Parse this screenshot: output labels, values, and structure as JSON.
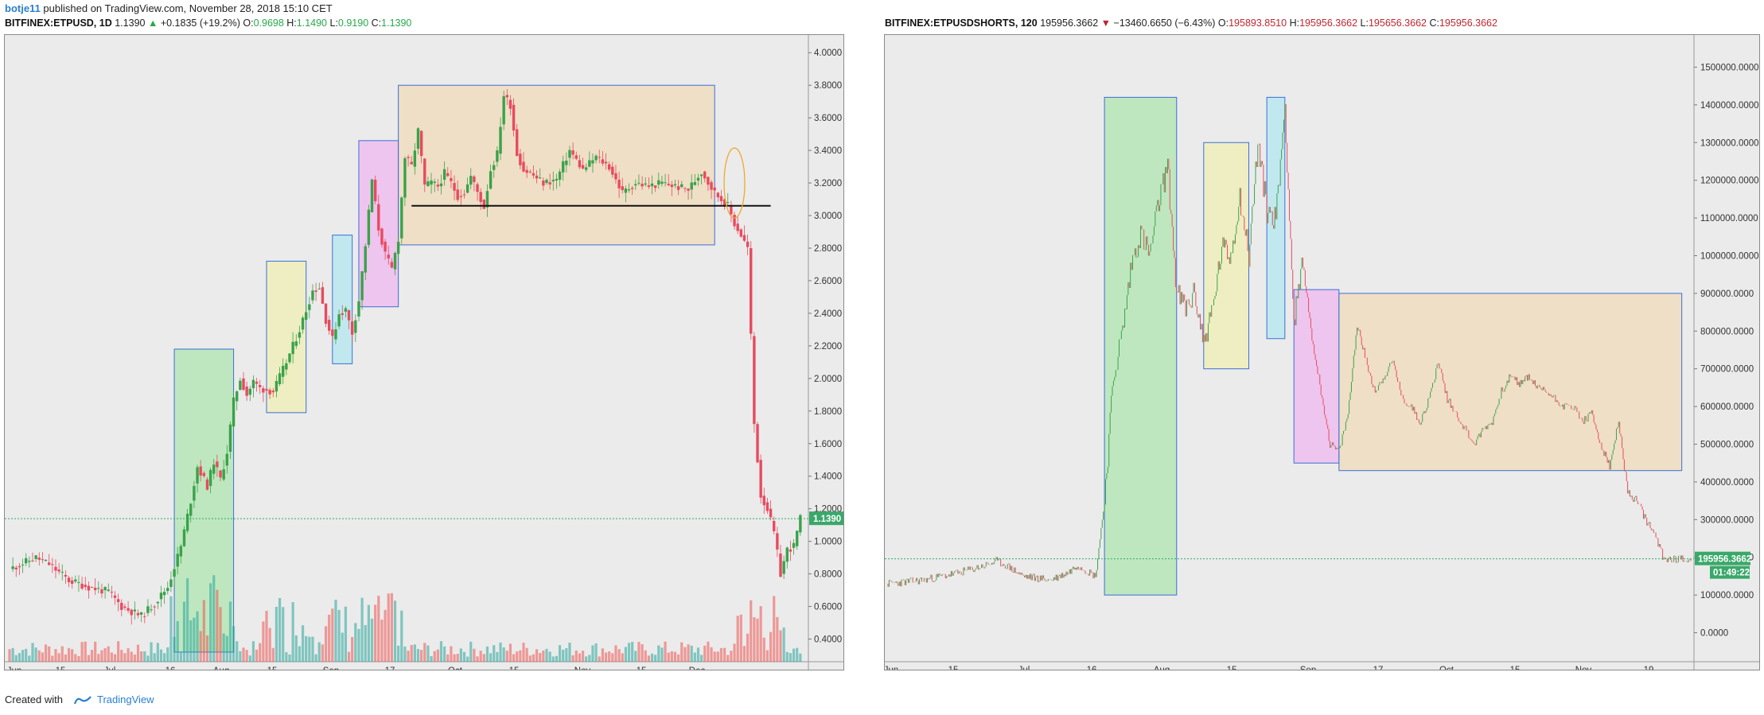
{
  "header": {
    "author": "botje11",
    "published": "published on TradingView.com, November 28, 2018 15:10 CET"
  },
  "left": {
    "symbol": "BITFINEX:ETPUSD, 1D",
    "last": "1.1390",
    "change": "+0.1835 (+19.2%)",
    "o": "0.9698",
    "h": "1.1490",
    "l": "0.9190",
    "c": "1.1390",
    "price_tag": "1.1390"
  },
  "right": {
    "symbol": "BITFINEX:ETPUSDSHORTS, 120",
    "last": "195956.3662",
    "change": "−13460.6650 (−6.43%)",
    "o": "195893.8510",
    "h": "195956.3662",
    "l": "195656.3662",
    "c": "195956.3662",
    "price_tag": "195956.3662",
    "countdown": "01:49:22"
  },
  "footer": {
    "created": "Created with",
    "brand": "TradingView"
  },
  "colors": {
    "up": "#26a69a",
    "down": "#ef5350",
    "candle_up": "#3aa24a",
    "candle_down": "#e84a5f",
    "green_box": "#9be39b",
    "yellow_box": "#f1f0a0",
    "cyan_box": "#9fe6f0",
    "pink_box": "#f0a6f0",
    "orange_box": "#f3d6a8",
    "box_border": "#3b6fd6",
    "last_line": "#2fa86a",
    "tag": "#3aa86a"
  },
  "chart_data": [
    {
      "type": "candlestick",
      "title": "BITFINEX:ETPUSD, 1D",
      "y_ticks": [
        "4.0000",
        "3.8000",
        "3.6000",
        "3.4000",
        "3.2000",
        "3.0000",
        "2.8000",
        "2.6000",
        "2.4000",
        "2.2000",
        "2.0000",
        "1.8000",
        "1.6000",
        "1.4000",
        "1.2000",
        "1.0000",
        "0.8000",
        "0.6000",
        "0.4000"
      ],
      "ylim": [
        0.3,
        4.05
      ],
      "x_ticks": [
        "Jun",
        "15",
        "Jul",
        "16",
        "Aug",
        "15",
        "Sep",
        "17",
        "Oct",
        "15",
        "Nov",
        "15",
        "Dec"
      ],
      "price_path": [
        [
          0,
          0.83
        ],
        [
          8,
          0.9
        ],
        [
          12,
          0.86
        ],
        [
          18,
          0.76
        ],
        [
          24,
          0.72
        ],
        [
          30,
          0.69
        ],
        [
          34,
          0.6
        ],
        [
          38,
          0.56
        ],
        [
          40,
          0.54
        ],
        [
          44,
          0.62
        ],
        [
          48,
          0.72
        ],
        [
          52,
          0.97
        ],
        [
          55,
          1.25
        ],
        [
          57,
          1.46
        ],
        [
          60,
          1.34
        ],
        [
          62,
          1.49
        ],
        [
          64,
          1.38
        ],
        [
          66,
          1.55
        ],
        [
          68,
          1.86
        ],
        [
          70,
          2.0
        ],
        [
          72,
          1.9
        ],
        [
          74,
          1.98
        ],
        [
          76,
          1.94
        ],
        [
          80,
          1.92
        ],
        [
          84,
          2.1
        ],
        [
          88,
          2.3
        ],
        [
          90,
          2.42
        ],
        [
          92,
          2.54
        ],
        [
          94,
          2.56
        ],
        [
          96,
          2.36
        ],
        [
          98,
          2.24
        ],
        [
          100,
          2.4
        ],
        [
          102,
          2.42
        ],
        [
          104,
          2.28
        ],
        [
          106,
          2.48
        ],
        [
          108,
          2.82
        ],
        [
          110,
          3.22
        ],
        [
          112,
          2.92
        ],
        [
          114,
          2.76
        ],
        [
          116,
          2.67
        ],
        [
          118,
          2.86
        ],
        [
          120,
          3.36
        ],
        [
          122,
          3.3
        ],
        [
          124,
          3.52
        ],
        [
          126,
          3.18
        ],
        [
          128,
          3.2
        ],
        [
          130,
          3.18
        ],
        [
          132,
          3.26
        ],
        [
          134,
          3.2
        ],
        [
          136,
          3.12
        ],
        [
          138,
          3.14
        ],
        [
          140,
          3.24
        ],
        [
          144,
          3.05
        ],
        [
          146,
          3.28
        ],
        [
          148,
          3.38
        ],
        [
          150,
          3.74
        ],
        [
          152,
          3.68
        ],
        [
          154,
          3.38
        ],
        [
          156,
          3.28
        ],
        [
          158,
          3.26
        ],
        [
          162,
          3.2
        ],
        [
          166,
          3.22
        ],
        [
          170,
          3.4
        ],
        [
          174,
          3.28
        ],
        [
          178,
          3.36
        ],
        [
          182,
          3.3
        ],
        [
          186,
          3.14
        ],
        [
          190,
          3.2
        ],
        [
          194,
          3.18
        ],
        [
          198,
          3.2
        ],
        [
          202,
          3.18
        ],
        [
          206,
          3.16
        ],
        [
          210,
          3.27
        ],
        [
          214,
          3.14
        ],
        [
          216,
          3.1
        ],
        [
          218,
          3.06
        ],
        [
          220,
          2.95
        ],
        [
          222,
          2.88
        ],
        [
          224,
          2.8
        ],
        [
          226,
          1.72
        ],
        [
          228,
          1.28
        ],
        [
          230,
          1.2
        ],
        [
          232,
          1.05
        ],
        [
          234,
          0.8
        ],
        [
          236,
          0.95
        ],
        [
          238,
          0.97
        ],
        [
          240,
          1.14
        ]
      ],
      "support_line": 3.06,
      "last_price": 1.139,
      "boxes": [
        {
          "color": "green",
          "x": [
            50,
            68
          ],
          "y": [
            0.32,
            2.18
          ]
        },
        {
          "color": "yellow",
          "x": [
            78,
            90
          ],
          "y": [
            1.79,
            2.72
          ]
        },
        {
          "color": "cyan",
          "x": [
            98,
            104
          ],
          "y": [
            2.09,
            2.88
          ]
        },
        {
          "color": "pink",
          "x": [
            106,
            118
          ],
          "y": [
            2.44,
            3.46
          ]
        },
        {
          "color": "orange",
          "x": [
            118,
            214
          ],
          "y": [
            2.82,
            3.8
          ]
        }
      ]
    },
    {
      "type": "line",
      "title": "BITFINEX:ETPUSDSHORTS, 120",
      "y_ticks": [
        "1500000.0000",
        "1400000.0000",
        "1300000.0000",
        "1200000.0000",
        "1100000.0000",
        "1000000.0000",
        "900000.0000",
        "800000.0000",
        "700000.0000",
        "600000.0000",
        "500000.0000",
        "400000.0000",
        "300000.0000",
        "200000.0000",
        "100000.0000",
        "0.0000"
      ],
      "ylim": [
        -60000,
        1560000
      ],
      "x_ticks": [
        "Jun",
        "15",
        "Jul",
        "16",
        "Aug",
        "15",
        "Sep",
        "17",
        "Oct",
        "15",
        "Nov",
        "19"
      ],
      "price_path": [
        [
          0,
          130000
        ],
        [
          8,
          140000
        ],
        [
          16,
          160000
        ],
        [
          22,
          180000
        ],
        [
          24,
          190000
        ],
        [
          26,
          180000
        ],
        [
          30,
          150000
        ],
        [
          36,
          140000
        ],
        [
          40,
          160000
        ],
        [
          42,
          180000
        ],
        [
          46,
          150000
        ],
        [
          48,
          350000
        ],
        [
          50,
          680000
        ],
        [
          52,
          800000
        ],
        [
          54,
          980000
        ],
        [
          56,
          1060000
        ],
        [
          58,
          1000000
        ],
        [
          60,
          1140000
        ],
        [
          62,
          1240000
        ],
        [
          64,
          900000
        ],
        [
          66,
          860000
        ],
        [
          68,
          900000
        ],
        [
          70,
          770000
        ],
        [
          72,
          860000
        ],
        [
          74,
          1020000
        ],
        [
          76,
          1000000
        ],
        [
          78,
          1160000
        ],
        [
          80,
          1000000
        ],
        [
          82,
          1300000
        ],
        [
          84,
          1120000
        ],
        [
          86,
          1100000
        ],
        [
          88,
          1400000
        ],
        [
          90,
          820000
        ],
        [
          92,
          980000
        ],
        [
          94,
          780000
        ],
        [
          96,
          640000
        ],
        [
          98,
          500000
        ],
        [
          100,
          480000
        ],
        [
          102,
          580000
        ],
        [
          104,
          820000
        ],
        [
          106,
          720000
        ],
        [
          108,
          640000
        ],
        [
          110,
          680000
        ],
        [
          112,
          720000
        ],
        [
          114,
          620000
        ],
        [
          116,
          600000
        ],
        [
          118,
          560000
        ],
        [
          120,
          620000
        ],
        [
          122,
          720000
        ],
        [
          124,
          620000
        ],
        [
          126,
          580000
        ],
        [
          128,
          540000
        ],
        [
          130,
          500000
        ],
        [
          132,
          540000
        ],
        [
          134,
          560000
        ],
        [
          136,
          640000
        ],
        [
          138,
          680000
        ],
        [
          140,
          660000
        ],
        [
          142,
          680000
        ],
        [
          144,
          650000
        ],
        [
          146,
          640000
        ],
        [
          148,
          620000
        ],
        [
          150,
          600000
        ],
        [
          152,
          600000
        ],
        [
          154,
          560000
        ],
        [
          156,
          580000
        ],
        [
          158,
          500000
        ],
        [
          160,
          440000
        ],
        [
          162,
          560000
        ],
        [
          164,
          370000
        ],
        [
          166,
          350000
        ],
        [
          168,
          300000
        ],
        [
          170,
          260000
        ],
        [
          172,
          196000
        ]
      ],
      "last_price": 195956.3662,
      "boxes": [
        {
          "color": "green",
          "x": [
            48,
            64
          ],
          "y": [
            100000,
            1420000
          ]
        },
        {
          "color": "yellow",
          "x": [
            70,
            80
          ],
          "y": [
            700000,
            1300000
          ]
        },
        {
          "color": "cyan",
          "x": [
            84,
            88
          ],
          "y": [
            780000,
            1420000
          ]
        },
        {
          "color": "pink",
          "x": [
            90,
            100
          ],
          "y": [
            450000,
            910000
          ]
        },
        {
          "color": "orange",
          "x": [
            100,
            176
          ],
          "y": [
            430000,
            900000
          ]
        }
      ]
    }
  ]
}
